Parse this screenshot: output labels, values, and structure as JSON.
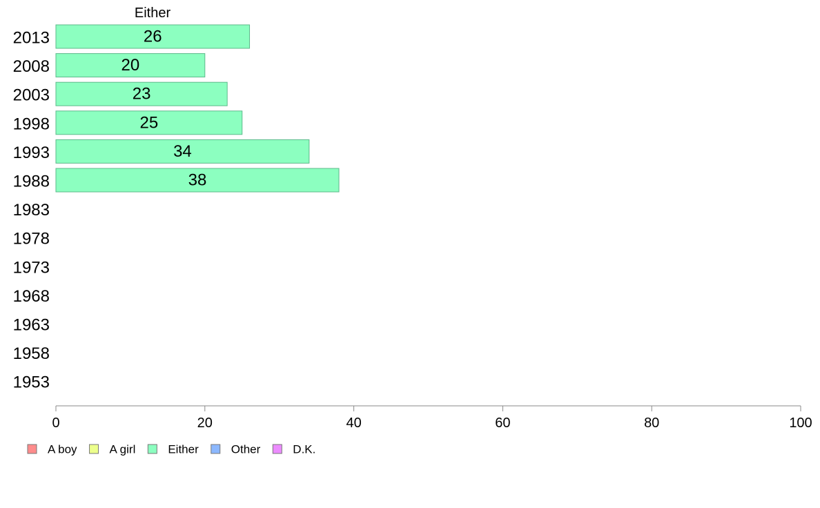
{
  "chart_data": {
    "type": "bar",
    "orientation": "horizontal",
    "categories": [
      "2013",
      "2008",
      "2003",
      "1998",
      "1993",
      "1988",
      "1983",
      "1978",
      "1973",
      "1968",
      "1963",
      "1958",
      "1953"
    ],
    "series": [
      {
        "name": "Either",
        "color": "#8cffc0",
        "values": [
          26,
          20,
          23,
          25,
          34,
          38,
          null,
          null,
          null,
          null,
          null,
          null,
          null
        ]
      }
    ],
    "series_title": "Either",
    "xlim": [
      0,
      100
    ],
    "x_ticks": [
      0,
      20,
      40,
      60,
      80,
      100
    ],
    "grid": false,
    "legend": {
      "placement": "bottom-left",
      "items": [
        {
          "label": "A boy",
          "color": "#ff8c8c"
        },
        {
          "label": "A girl",
          "color": "#ecff8c"
        },
        {
          "label": "Either",
          "color": "#8cffc0"
        },
        {
          "label": "Other",
          "color": "#8cb8ff"
        },
        {
          "label": "D.K.",
          "color": "#ec8cff"
        }
      ]
    }
  }
}
